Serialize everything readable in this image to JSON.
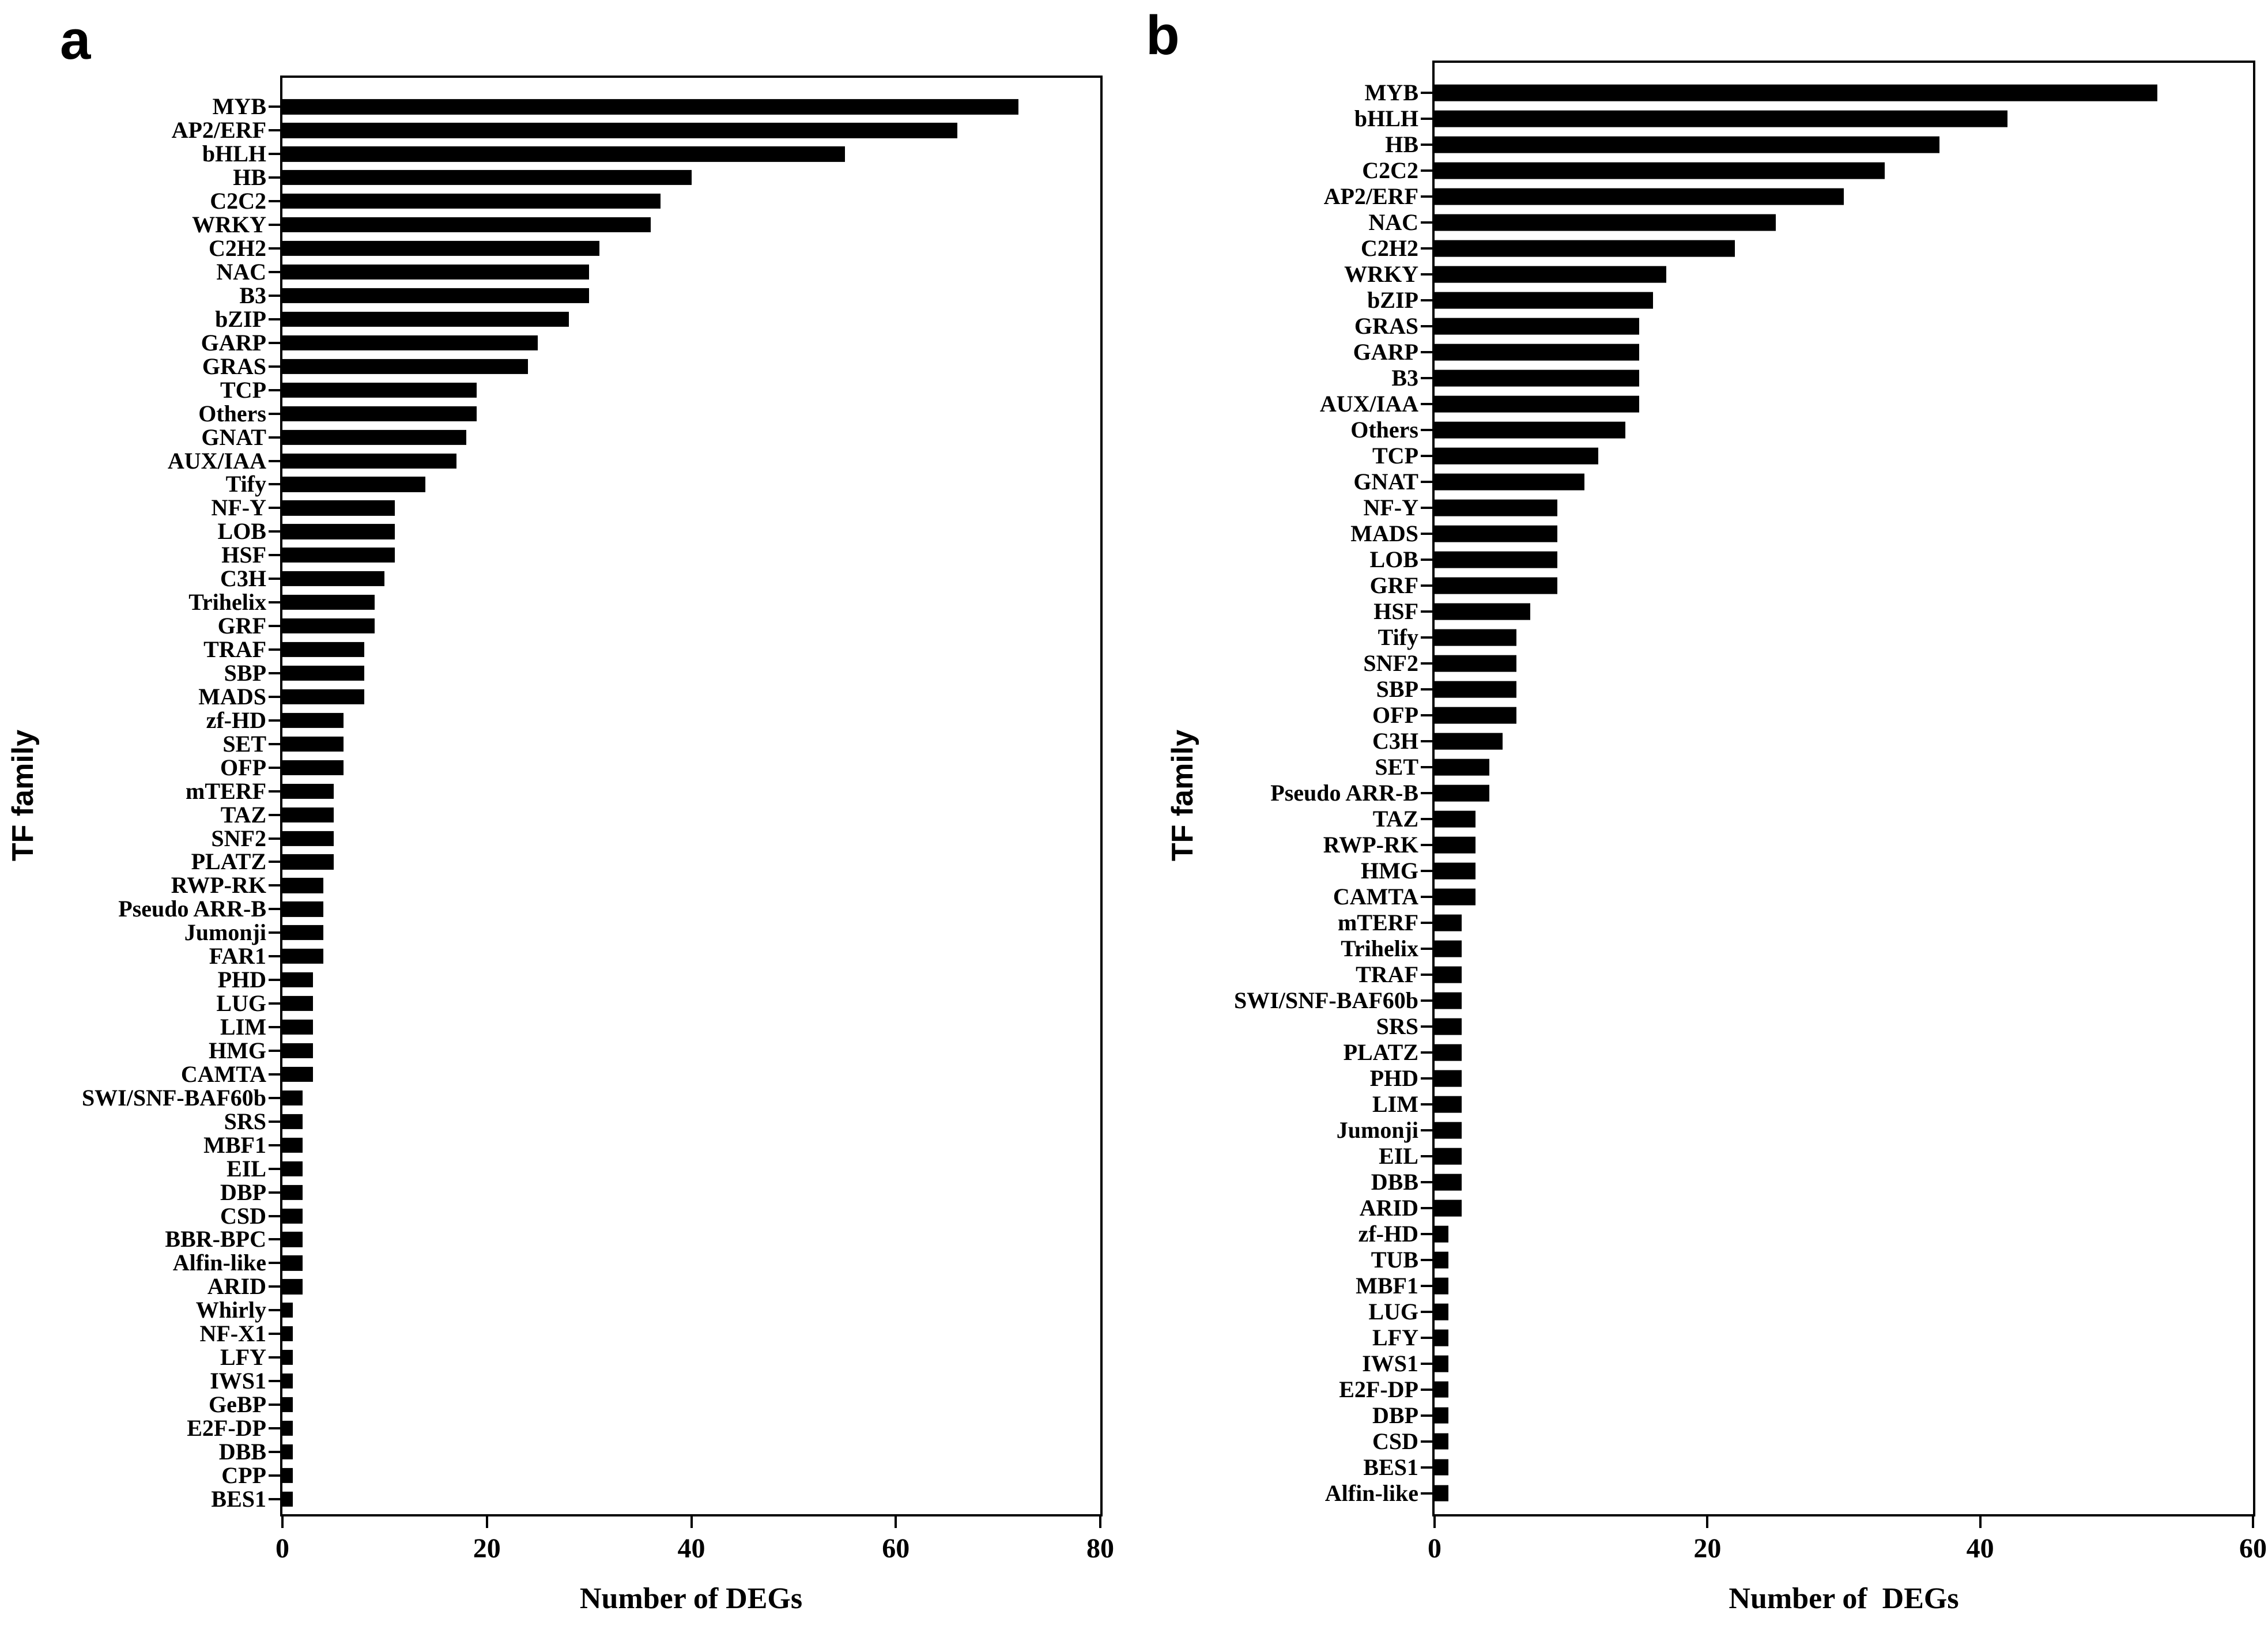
{
  "figure": {
    "background_color": "#ffffff",
    "bar_color": "#000000",
    "text_color": "#000000"
  },
  "chart_data": [
    {
      "type": "bar",
      "orientation": "horizontal",
      "panel_letter": "a",
      "title": "",
      "xlabel": "Number of DEGs",
      "ylabel": "TF family",
      "xlim": [
        0,
        80
      ],
      "xticks": [
        0,
        20,
        40,
        60,
        80
      ],
      "grid": false,
      "legend": "none",
      "categories": [
        "MYB",
        "AP2/ERF",
        "bHLH",
        "HB",
        "C2C2",
        "WRKY",
        "C2H2",
        "NAC",
        "B3",
        "bZIP",
        "GARP",
        "GRAS",
        "TCP",
        "Others",
        "GNAT",
        "AUX/IAA",
        "Tify",
        "NF-Y",
        "LOB",
        "HSF",
        "C3H",
        "Trihelix",
        "GRF",
        "TRAF",
        "SBP",
        "MADS",
        "zf-HD",
        "SET",
        "OFP",
        "mTERF",
        "TAZ",
        "SNF2",
        "PLATZ",
        "RWP-RK",
        "Pseudo ARR-B",
        "Jumonji",
        "FAR1",
        "PHD",
        "LUG",
        "LIM",
        "HMG",
        "CAMTA",
        "SWI/SNF-BAF60b",
        "SRS",
        "MBF1",
        "EIL",
        "DBP",
        "CSD",
        "BBR-BPC",
        "Alfin-like",
        "ARID",
        "Whirly",
        "NF-X1",
        "LFY",
        "IWS1",
        "GeBP",
        "E2F-DP",
        "DBB",
        "CPP",
        "BES1"
      ],
      "values": [
        72,
        66,
        55,
        40,
        37,
        36,
        31,
        30,
        30,
        28,
        25,
        24,
        19,
        19,
        18,
        17,
        14,
        11,
        11,
        11,
        10,
        9,
        9,
        8,
        8,
        8,
        6,
        6,
        6,
        5,
        5,
        5,
        5,
        4,
        4,
        4,
        4,
        3,
        3,
        3,
        3,
        3,
        2,
        2,
        2,
        2,
        2,
        2,
        2,
        2,
        2,
        1,
        1,
        1,
        1,
        1,
        1,
        1,
        1,
        1
      ]
    },
    {
      "type": "bar",
      "orientation": "horizontal",
      "panel_letter": "b",
      "title": "",
      "xlabel": "Number of  DEGs",
      "ylabel": "TF family",
      "xlim": [
        0,
        60
      ],
      "xticks": [
        0,
        20,
        40,
        60
      ],
      "grid": false,
      "legend": "none",
      "categories": [
        "MYB",
        "bHLH",
        "HB",
        "C2C2",
        "AP2/ERF",
        "NAC",
        "C2H2",
        "WRKY",
        "bZIP",
        "GRAS",
        "GARP",
        "B3",
        "AUX/IAA",
        "Others",
        "TCP",
        "GNAT",
        "NF-Y",
        "MADS",
        "LOB",
        "GRF",
        "HSF",
        "Tify",
        "SNF2",
        "SBP",
        "OFP",
        "C3H",
        "SET",
        "Pseudo ARR-B",
        "TAZ",
        "RWP-RK",
        "HMG",
        "CAMTA",
        "mTERF",
        "Trihelix",
        "TRAF",
        "SWI/SNF-BAF60b",
        "SRS",
        "PLATZ",
        "PHD",
        "LIM",
        "Jumonji",
        "EIL",
        "DBB",
        "ARID",
        "zf-HD",
        "TUB",
        "MBF1",
        "LUG",
        "LFY",
        "IWS1",
        "E2F-DP",
        "DBP",
        "CSD",
        "BES1",
        "Alfin-like"
      ],
      "values": [
        53,
        42,
        37,
        33,
        30,
        25,
        22,
        17,
        16,
        15,
        15,
        15,
        15,
        14,
        12,
        11,
        9,
        9,
        9,
        9,
        7,
        6,
        6,
        6,
        6,
        5,
        4,
        4,
        3,
        3,
        3,
        3,
        2,
        2,
        2,
        2,
        2,
        2,
        2,
        2,
        2,
        2,
        2,
        2,
        1,
        1,
        1,
        1,
        1,
        1,
        1,
        1,
        1,
        1,
        1
      ]
    }
  ]
}
